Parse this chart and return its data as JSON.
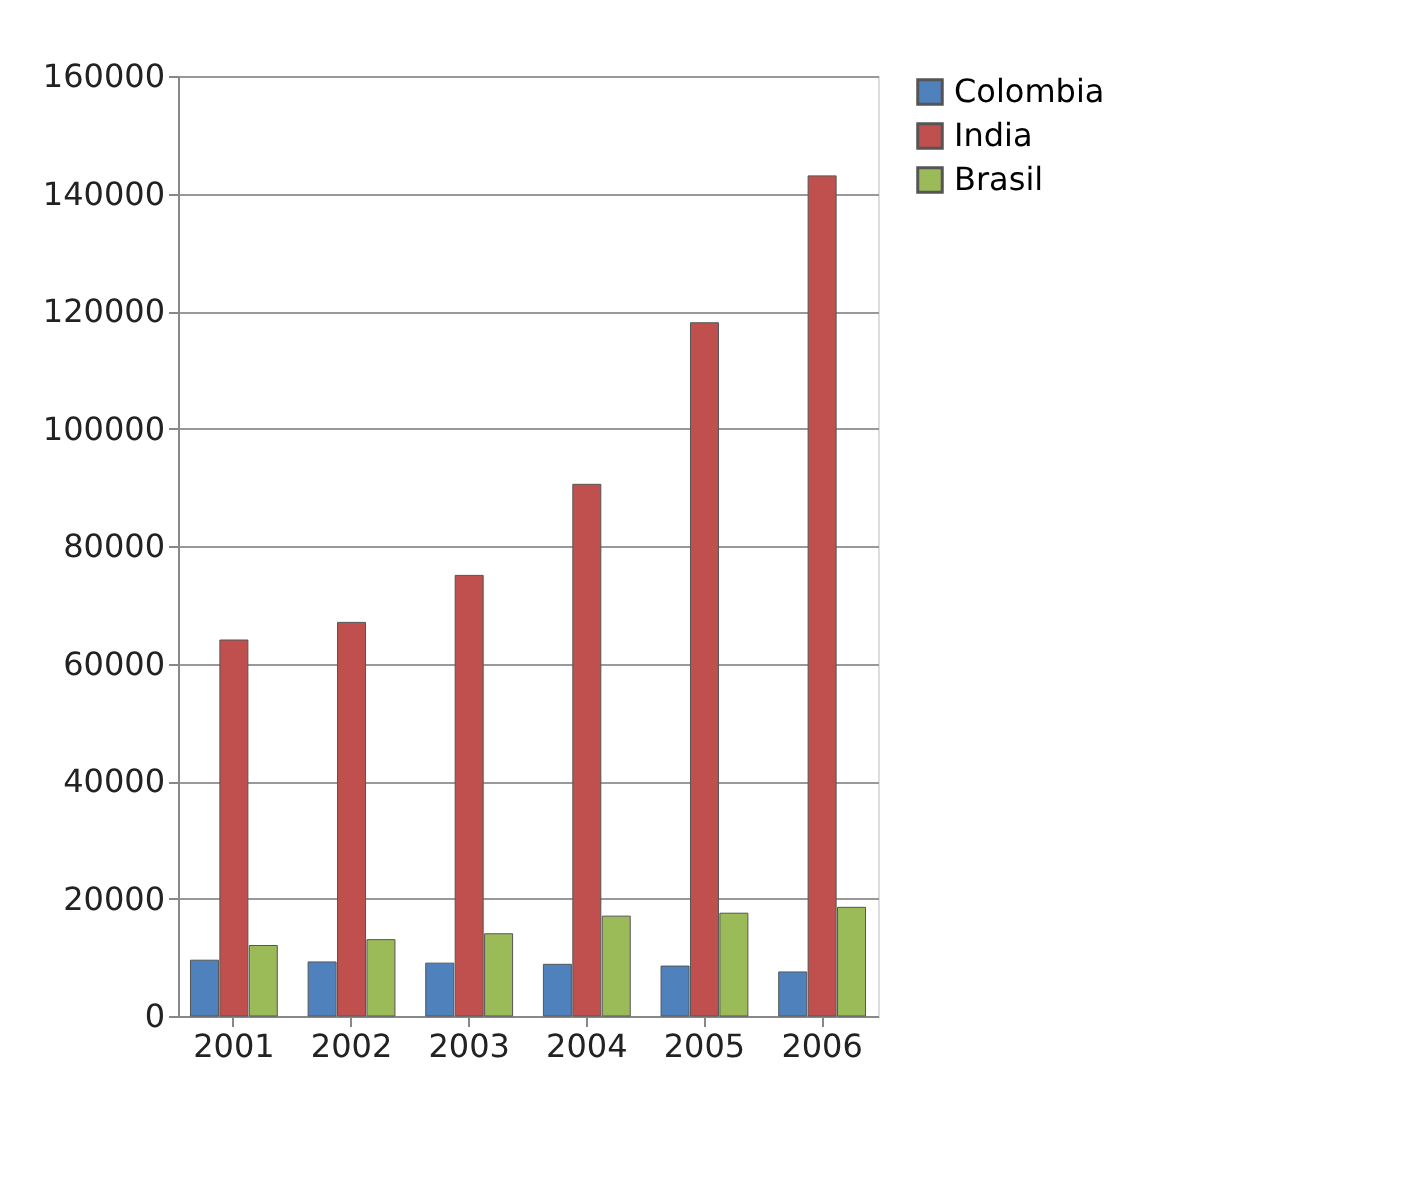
{
  "chart_data": {
    "type": "bar",
    "categories": [
      "2001",
      "2002",
      "2003",
      "2004",
      "2005",
      "2006"
    ],
    "series": [
      {
        "name": "Colombia",
        "color": "#4f81bd",
        "values": [
          9500,
          9200,
          9000,
          8800,
          8500,
          7500
        ]
      },
      {
        "name": "India",
        "color": "#c0504d",
        "values": [
          64000,
          67000,
          75000,
          90500,
          118000,
          143000
        ]
      },
      {
        "name": "Brasil",
        "color": "#9bbb59",
        "values": [
          12000,
          13000,
          14000,
          17000,
          17500,
          18500
        ]
      }
    ],
    "ylim": [
      0,
      160000
    ],
    "yticks": [
      0,
      20000,
      40000,
      60000,
      80000,
      100000,
      120000,
      140000,
      160000
    ],
    "grid": "y",
    "legend": "right"
  }
}
